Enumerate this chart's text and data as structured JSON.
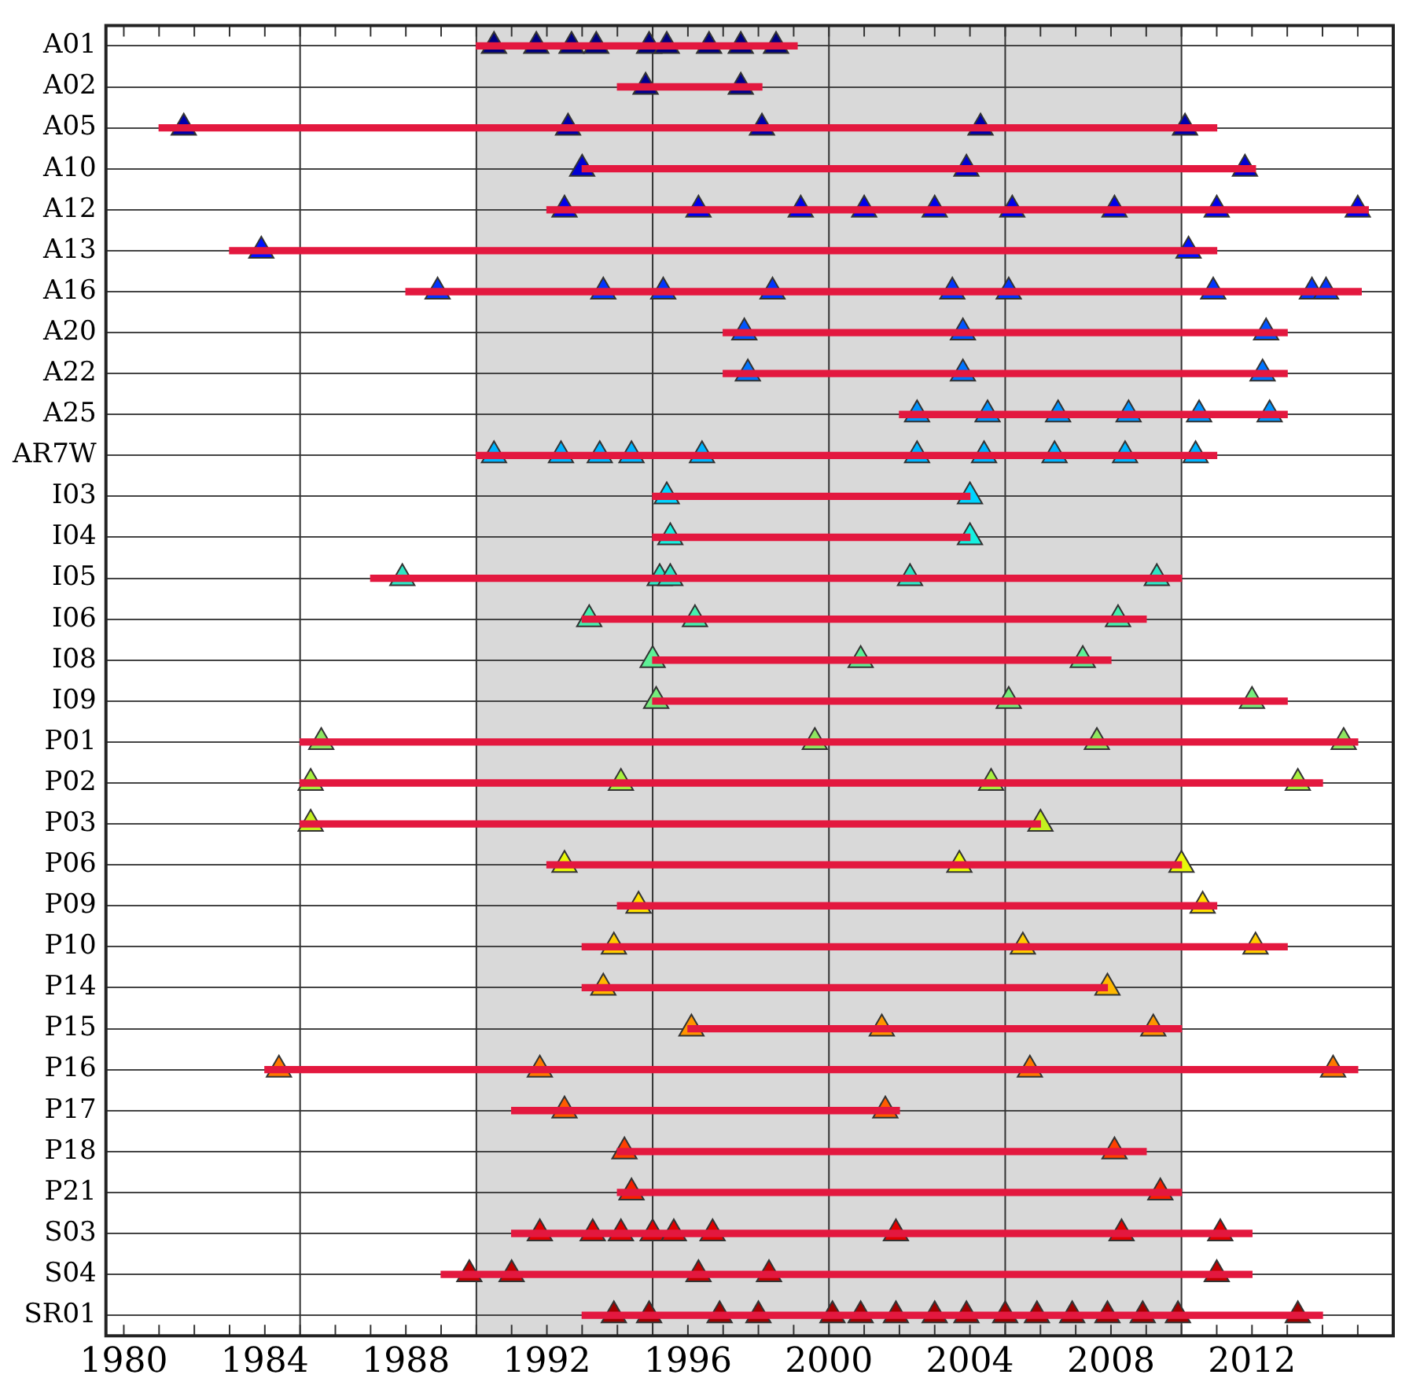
{
  "chart_data": {
    "type": "bar",
    "orientation": "horizontal",
    "grid": "y",
    "categories": [
      "A01",
      "A02",
      "A05",
      "A10",
      "A12",
      "A13",
      "A16",
      "A20",
      "A22",
      "A25",
      "AR7W",
      "I03",
      "I04",
      "I05",
      "I06",
      "I08",
      "I09",
      "P01",
      "P02",
      "P03",
      "P06",
      "P09",
      "P10",
      "P14",
      "P15",
      "P16",
      "P17",
      "P18",
      "P21",
      "S03",
      "S04",
      "SR01"
    ],
    "xlim": [
      1980,
      2015.5
    ],
    "xticks": [
      1980,
      {
        "value": 1981,
        "label": null
      },
      {
        "value": 1982,
        "label": null
      },
      {
        "value": 1983,
        "label": null
      },
      1984,
      {
        "value": 1985,
        "label": null
      },
      {
        "value": 1986,
        "label": null
      },
      {
        "value": 1987,
        "label": null
      },
      1988,
      {
        "value": 1989,
        "label": null
      },
      {
        "value": 1990,
        "label": null
      },
      {
        "value": 1991,
        "label": null
      },
      1992,
      {
        "value": 1993,
        "label": null
      },
      {
        "value": 1994,
        "label": null
      },
      {
        "value": 1995,
        "label": null
      },
      1996,
      {
        "value": 1997,
        "label": null
      },
      {
        "value": 1998,
        "label": null
      },
      {
        "value": 1999,
        "label": null
      },
      2000,
      {
        "value": 2001,
        "label": null
      },
      {
        "value": 2002,
        "label": null
      },
      {
        "value": 2003,
        "label": null
      },
      2004,
      {
        "value": 2005,
        "label": null
      },
      {
        "value": 2006,
        "label": null
      },
      {
        "value": 2007,
        "label": null
      },
      2008,
      {
        "value": 2009,
        "label": null
      },
      {
        "value": 2010,
        "label": null
      },
      {
        "value": 2011,
        "label": null
      },
      2012,
      {
        "value": 2013,
        "label": null
      },
      {
        "value": 2014,
        "label": null
      },
      {
        "value": 2015,
        "label": null
      }
    ],
    "ref_lines": [
      {
        "axis": "x",
        "value": 1985,
        "color": "#333333"
      },
      {
        "axis": "x",
        "value": 1990,
        "color": "#333333"
      },
      {
        "axis": "x",
        "value": 1995,
        "color": "#333333"
      },
      {
        "axis": "x",
        "value": 2000,
        "color": "#333333"
      },
      {
        "axis": "x",
        "value": 2005,
        "color": "#333333"
      },
      {
        "axis": "x",
        "value": 2010,
        "color": "#333333"
      }
    ],
    "bands": [
      {
        "axis": "x",
        "from": 1990,
        "to": 2010,
        "color": "#d9d9d9"
      }
    ],
    "series": [
      {
        "type": "bar",
        "color": "#e3183f",
        "base": [
          1990,
          1994,
          1981,
          1993,
          1992,
          1983,
          1988,
          1997,
          1997,
          2002,
          1990,
          1995,
          1995,
          1987,
          1993,
          1995,
          1995,
          1985,
          1985,
          1985,
          1992,
          1994,
          1993,
          1993,
          1996,
          1984,
          1991,
          1994,
          1994,
          1991,
          1989,
          1993
        ],
        "values": [
          9.1,
          4.1,
          30,
          19.1,
          23.3,
          28,
          27.1,
          16,
          16,
          11,
          21,
          9,
          9,
          23,
          16,
          13,
          18,
          30,
          29,
          21,
          18,
          17,
          20,
          14.9,
          14,
          31,
          11,
          15,
          16,
          21,
          23,
          21
        ]
      },
      {
        "type": "scatter",
        "marker": "triangle",
        "color": "#00007f",
        "x": [
          "A01",
          "A01",
          "A01",
          "A01",
          "A01",
          "A01",
          "A01",
          "A01",
          "A01"
        ],
        "values": [
          1990.5,
          1991.7,
          1992.7,
          1993.4,
          1994.9,
          1995.4,
          1996.6,
          1997.5,
          1998.5
        ]
      },
      {
        "type": "scatter",
        "marker": "triangle",
        "color": "#00008f",
        "x": [
          "A02",
          "A02"
        ],
        "values": [
          1994.8,
          1997.5
        ]
      },
      {
        "type": "scatter",
        "marker": "triangle",
        "color": "#0000ad",
        "x": [
          "A05",
          "A05",
          "A05",
          "A05",
          "A05"
        ],
        "values": [
          1981.7,
          1992.6,
          1998.1,
          2004.3,
          2010.1
        ]
      },
      {
        "type": "scatter",
        "marker": "triangle",
        "color": "#0000d4",
        "x": [
          "A10",
          "A10",
          "A10"
        ],
        "values": [
          1993.0,
          2003.9,
          2011.8
        ]
      },
      {
        "type": "scatter",
        "marker": "triangle",
        "color": "#0000ee",
        "x": [
          "A12",
          "A12",
          "A12",
          "A12",
          "A12",
          "A12",
          "A12",
          "A12",
          "A12"
        ],
        "values": [
          1992.5,
          1996.3,
          1999.2,
          2001.0,
          2003.0,
          2005.2,
          2008.1,
          2011.0,
          2015.0
        ]
      },
      {
        "type": "scatter",
        "marker": "triangle",
        "color": "#0010ff",
        "x": [
          "A13",
          "A13"
        ],
        "values": [
          1983.9,
          2010.2
        ]
      },
      {
        "type": "scatter",
        "marker": "triangle",
        "color": "#0034ff",
        "x": [
          "A16",
          "A16",
          "A16",
          "A16",
          "A16",
          "A16",
          "A16",
          "A16",
          "A16"
        ],
        "values": [
          1988.9,
          1993.6,
          1995.3,
          1998.4,
          2003.5,
          2005.1,
          2010.9,
          2013.7,
          2014.1
        ]
      },
      {
        "type": "scatter",
        "marker": "triangle",
        "color": "#0054ff",
        "x": [
          "A20",
          "A20",
          "A20"
        ],
        "values": [
          1997.6,
          2003.8,
          2012.4
        ]
      },
      {
        "type": "scatter",
        "marker": "triangle",
        "color": "#0074ff",
        "x": [
          "A22",
          "A22",
          "A22"
        ],
        "values": [
          1997.7,
          2003.8,
          2012.3
        ]
      },
      {
        "type": "scatter",
        "marker": "triangle",
        "color": "#0094ff",
        "x": [
          "A25",
          "A25",
          "A25",
          "A25",
          "A25",
          "A25"
        ],
        "values": [
          2002.5,
          2004.5,
          2006.5,
          2008.5,
          2010.5,
          2012.5
        ]
      },
      {
        "type": "scatter",
        "marker": "triangle",
        "color": "#00b4ff",
        "x": [
          "AR7W",
          "AR7W",
          "AR7W",
          "AR7W",
          "AR7W",
          "AR7W",
          "AR7W",
          "AR7W",
          "AR7W",
          "AR7W"
        ],
        "values": [
          1990.5,
          1992.4,
          1993.5,
          1994.4,
          1996.4,
          2002.5,
          2004.4,
          2006.4,
          2008.4,
          2010.4
        ]
      },
      {
        "type": "scatter",
        "marker": "triangle",
        "color": "#00d4ff",
        "x": [
          "I03",
          "I03"
        ],
        "values": [
          1995.4,
          2004.0
        ]
      },
      {
        "type": "scatter",
        "marker": "triangle",
        "color": "#16f0e0",
        "x": [
          "I04",
          "I04"
        ],
        "values": [
          1995.5,
          2004.0
        ]
      },
      {
        "type": "scatter",
        "marker": "triangle",
        "color": "#2ee6c4",
        "x": [
          "I05",
          "I05",
          "I05",
          "I05",
          "I05"
        ],
        "values": [
          1987.9,
          1995.2,
          1995.5,
          2002.3,
          2009.3
        ]
      },
      {
        "type": "scatter",
        "marker": "triangle",
        "color": "#46f0ae",
        "x": [
          "I06",
          "I06",
          "I06"
        ],
        "values": [
          1993.2,
          1996.2,
          2008.2
        ]
      },
      {
        "type": "scatter",
        "marker": "triangle",
        "color": "#5ef096",
        "x": [
          "I08",
          "I08",
          "I08"
        ],
        "values": [
          1995.0,
          2000.9,
          2007.2
        ]
      },
      {
        "type": "scatter",
        "marker": "triangle",
        "color": "#76ec7c",
        "x": [
          "I09",
          "I09",
          "I09"
        ],
        "values": [
          1995.1,
          2005.1,
          2012.0
        ]
      },
      {
        "type": "scatter",
        "marker": "triangle",
        "color": "#8ee660",
        "x": [
          "P01",
          "P01",
          "P01",
          "P01"
        ],
        "values": [
          1985.6,
          1999.6,
          2007.6,
          2014.6
        ]
      },
      {
        "type": "scatter",
        "marker": "triangle",
        "color": "#a8f040",
        "x": [
          "P02",
          "P02",
          "P02",
          "P02"
        ],
        "values": [
          1985.3,
          1994.1,
          2004.6,
          2013.3
        ]
      },
      {
        "type": "scatter",
        "marker": "triangle",
        "color": "#c4f020",
        "x": [
          "P03",
          "P03"
        ],
        "values": [
          1985.3,
          2006.0
        ]
      },
      {
        "type": "scatter",
        "marker": "triangle",
        "color": "#e8f80a",
        "x": [
          "P06",
          "P06",
          "P06"
        ],
        "values": [
          1992.5,
          2003.7,
          2010.0
        ]
      },
      {
        "type": "scatter",
        "marker": "triangle",
        "color": "#ffe000",
        "x": [
          "P09",
          "P09"
        ],
        "values": [
          1994.6,
          2010.6
        ]
      },
      {
        "type": "scatter",
        "marker": "triangle",
        "color": "#ffcc00",
        "x": [
          "P10",
          "P10",
          "P10"
        ],
        "values": [
          1993.9,
          2005.5,
          2012.1
        ]
      },
      {
        "type": "scatter",
        "marker": "triangle",
        "color": "#ffb800",
        "x": [
          "P14",
          "P14"
        ],
        "values": [
          1993.6,
          2007.9
        ]
      },
      {
        "type": "scatter",
        "marker": "triangle",
        "color": "#ff9400",
        "x": [
          "P15",
          "P15",
          "P15"
        ],
        "values": [
          1996.1,
          2001.5,
          2009.2
        ]
      },
      {
        "type": "scatter",
        "marker": "triangle",
        "color": "#ff7800",
        "x": [
          "P16",
          "P16",
          "P16",
          "P16"
        ],
        "values": [
          1984.4,
          1991.8,
          2005.7,
          2014.3
        ]
      },
      {
        "type": "scatter",
        "marker": "triangle",
        "color": "#ff5c00",
        "x": [
          "P17",
          "P17"
        ],
        "values": [
          1992.5,
          2001.6
        ]
      },
      {
        "type": "scatter",
        "marker": "triangle",
        "color": "#ff4000",
        "x": [
          "P18",
          "P18"
        ],
        "values": [
          1994.2,
          2008.1
        ]
      },
      {
        "type": "scatter",
        "marker": "triangle",
        "color": "#f52000",
        "x": [
          "P21",
          "P21"
        ],
        "values": [
          1994.4,
          2009.4
        ]
      },
      {
        "type": "scatter",
        "marker": "triangle",
        "color": "#e00000",
        "x": [
          "S03",
          "S03",
          "S03",
          "S03",
          "S03",
          "S03",
          "S03",
          "S03",
          "S03"
        ],
        "values": [
          1991.8,
          1993.3,
          1994.1,
          1995.0,
          1995.6,
          1996.7,
          2001.9,
          2008.3,
          2011.1
        ]
      },
      {
        "type": "scatter",
        "marker": "triangle",
        "color": "#c00000",
        "x": [
          "S04",
          "S04",
          "S04",
          "S04",
          "S04"
        ],
        "values": [
          1989.8,
          1991.0,
          1996.3,
          1998.3,
          2011.0
        ]
      },
      {
        "type": "scatter",
        "marker": "triangle",
        "color": "#a00000",
        "x": [
          "SR01",
          "SR01",
          "SR01",
          "SR01",
          "SR01",
          "SR01",
          "SR01",
          "SR01",
          "SR01",
          "SR01",
          "SR01",
          "SR01",
          "SR01",
          "SR01",
          "SR01",
          "SR01"
        ],
        "values": [
          1993.9,
          1994.9,
          1996.9,
          1998.0,
          2000.1,
          2000.9,
          2001.9,
          2003.0,
          2003.9,
          2005.0,
          2005.9,
          2006.9,
          2007.9,
          2008.9,
          2009.9,
          2013.3
        ]
      }
    ]
  }
}
